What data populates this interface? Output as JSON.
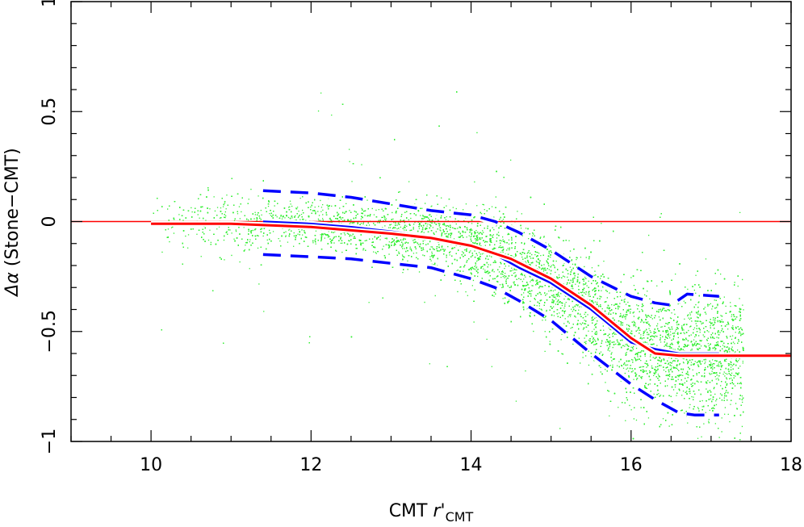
{
  "chart_data": {
    "type": "scatter",
    "title": "",
    "xlabel": {
      "main": "CMT ",
      "var": "r'",
      "sub": "CMT"
    },
    "ylabel": {
      "greek": "Δα",
      "paren": " (Stone−CMT)"
    },
    "xlim": [
      9,
      18
    ],
    "ylim": [
      -1,
      1
    ],
    "x_ticks": [
      10,
      12,
      14,
      16,
      18
    ],
    "y_ticks": [
      -1,
      -0.5,
      0,
      0.5,
      1
    ],
    "x_tick_labels": [
      "10",
      "12",
      "14",
      "16",
      "18"
    ],
    "y_tick_labels": [
      "−1",
      "−0.5",
      "0",
      "0.5",
      "1"
    ],
    "grid": false,
    "legend": "none",
    "colors": {
      "scatter": "#33ee33",
      "reference_line": "#ff0000",
      "fit": "#ff0000",
      "median": "#0000ff",
      "band": "#0000ff"
    },
    "scatter_cloud": {
      "description_points": "dense cloud of points following the median trend, spread growing with magnitude",
      "x_range": [
        9.9,
        17.4
      ],
      "approx_point_count": 14000
    },
    "series": [
      {
        "name": "",
        "role": "zero-reference",
        "style": "solid-thin",
        "x": [
          9,
          18
        ],
        "y": [
          0,
          0
        ]
      },
      {
        "name": "",
        "role": "fit",
        "style": "solid-thick",
        "x": [
          10.0,
          11.0,
          12.0,
          12.5,
          13.0,
          13.5,
          14.0,
          14.5,
          15.0,
          15.5,
          16.0,
          16.3,
          16.6,
          17.0,
          18.0
        ],
        "y": [
          -0.01,
          -0.01,
          -0.025,
          -0.04,
          -0.055,
          -0.075,
          -0.11,
          -0.17,
          -0.26,
          -0.38,
          -0.53,
          -0.6,
          -0.61,
          -0.61,
          -0.61
        ]
      },
      {
        "name": "",
        "role": "median",
        "style": "solid",
        "x": [
          11.4,
          12.0,
          12.5,
          13.0,
          13.5,
          14.0,
          14.3,
          14.6,
          15.0,
          15.5,
          16.0,
          16.3,
          16.6,
          17.1
        ],
        "y": [
          0.0,
          -0.01,
          -0.025,
          -0.045,
          -0.07,
          -0.11,
          -0.15,
          -0.21,
          -0.28,
          -0.4,
          -0.55,
          -0.58,
          -0.6,
          -0.6
        ]
      },
      {
        "name": "",
        "role": "upper-band",
        "style": "dashed",
        "x": [
          11.4,
          12.0,
          12.5,
          13.0,
          13.5,
          14.0,
          14.3,
          14.6,
          15.0,
          15.5,
          16.0,
          16.3,
          16.5,
          16.7,
          17.1
        ],
        "y": [
          0.14,
          0.13,
          0.11,
          0.08,
          0.05,
          0.03,
          0.0,
          -0.05,
          -0.13,
          -0.25,
          -0.34,
          -0.37,
          -0.38,
          -0.33,
          -0.34
        ]
      },
      {
        "name": "",
        "role": "lower-band",
        "style": "dashed",
        "x": [
          11.4,
          12.0,
          12.5,
          13.0,
          13.5,
          14.0,
          14.3,
          14.6,
          15.0,
          15.5,
          16.0,
          16.3,
          16.6,
          16.8,
          17.1
        ],
        "y": [
          -0.15,
          -0.16,
          -0.17,
          -0.19,
          -0.21,
          -0.26,
          -0.3,
          -0.36,
          -0.45,
          -0.6,
          -0.74,
          -0.81,
          -0.87,
          -0.88,
          -0.88
        ]
      }
    ]
  }
}
